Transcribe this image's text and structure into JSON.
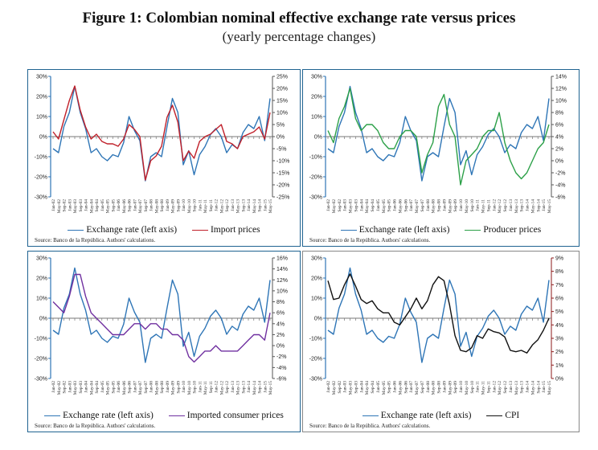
{
  "figure": {
    "title": "Figure 1: Colombian nominal effective exchange rate versus prices",
    "subtitle": "(yearly percentage changes)"
  },
  "chart_data": [
    {
      "type": "line",
      "title": "",
      "x": [
        "Jan-02",
        "May-02",
        "Sep-02",
        "Jan-03",
        "May-03",
        "Sep-03",
        "Jan-04",
        "May-04",
        "Sep-04",
        "Jan-05",
        "May-05",
        "Sep-05",
        "Jan-06",
        "May-06",
        "Sep-06",
        "Jan-07",
        "May-07",
        "Sep-07",
        "Jan-08",
        "May-08",
        "Sep-08",
        "Jan-09",
        "May-09",
        "Sep-09",
        "Jan-10",
        "May-10",
        "Sep-10",
        "Jan-11",
        "May-11",
        "Sep-11",
        "Jan-12",
        "May-12",
        "Sep-12",
        "Jan-13",
        "May-13",
        "Sep-13",
        "Jan-14",
        "May-14",
        "Sep-14",
        "Jan-15",
        "May-15"
      ],
      "ylim_left": [
        -30,
        30
      ],
      "yticks_left": [
        "30%",
        "20%",
        "10%",
        "0%",
        "-10%",
        "-20%",
        "-30%"
      ],
      "ylim_right": [
        -25,
        25
      ],
      "yticks_right": [
        "25%",
        "20%",
        "15%",
        "10%",
        "5%",
        "0%",
        "-5%",
        "-10%",
        "-15%",
        "-20%",
        "-25%"
      ],
      "series": [
        {
          "name": "Exchange rate (left axis)",
          "axis": "left",
          "color": "#2e75b6",
          "values": [
            -6,
            -8,
            5,
            12,
            25,
            12,
            4,
            -8,
            -6,
            -10,
            -12,
            -9,
            -10,
            -3,
            10,
            3,
            -2,
            -22,
            -10,
            -8,
            -10,
            5,
            19,
            12,
            -14,
            -7,
            -19,
            -9,
            -5,
            1,
            4,
            0,
            -8,
            -4,
            -6,
            2,
            6,
            4,
            10,
            -2,
            19
          ]
        },
        {
          "name": "Import prices",
          "axis": "right",
          "color": "#c0202a",
          "values": [
            2,
            -1,
            7,
            15,
            21,
            11,
            4,
            -1,
            1,
            -2,
            -3,
            -3,
            -4,
            -1,
            5,
            3,
            0,
            -18,
            -10,
            -8,
            -4,
            8,
            13,
            6,
            -10,
            -6,
            -9,
            -2,
            0,
            1,
            3,
            5,
            -2,
            -3,
            -5,
            0,
            1,
            2,
            4,
            -1,
            10
          ]
        }
      ],
      "source": "Source: Banco de la República. Authors' calculations."
    },
    {
      "type": "line",
      "x": [
        "Jan-02",
        "May-02",
        "Sep-02",
        "Jan-03",
        "May-03",
        "Sep-03",
        "Jan-04",
        "May-04",
        "Sep-04",
        "Jan-05",
        "May-05",
        "Sep-05",
        "Jan-06",
        "May-06",
        "Sep-06",
        "Jan-07",
        "May-07",
        "Sep-07",
        "Jan-08",
        "May-08",
        "Sep-08",
        "Jan-09",
        "May-09",
        "Sep-09",
        "Jan-10",
        "May-10",
        "Sep-10",
        "Jan-11",
        "May-11",
        "Sep-11",
        "Jan-12",
        "May-12",
        "Sep-12",
        "Jan-13",
        "May-13",
        "Sep-13",
        "Jan-14",
        "May-14",
        "Sep-14",
        "Jan-15",
        "May-15"
      ],
      "ylim_left": [
        -30,
        30
      ],
      "yticks_left": [
        "30%",
        "20%",
        "10%",
        "0%",
        "-10%",
        "-20%",
        "-30%"
      ],
      "ylim_right": [
        -6,
        14
      ],
      "yticks_right": [
        "14%",
        "12%",
        "10%",
        "8%",
        "6%",
        "4%",
        "2%",
        "0%",
        "-2%",
        "-4%",
        "-6%"
      ],
      "series": [
        {
          "name": "Exchange rate (left axis)",
          "axis": "left",
          "color": "#2e75b6",
          "values": [
            -6,
            -8,
            5,
            12,
            25,
            12,
            4,
            -8,
            -6,
            -10,
            -12,
            -9,
            -10,
            -3,
            10,
            3,
            -2,
            -22,
            -10,
            -8,
            -10,
            5,
            19,
            12,
            -14,
            -7,
            -19,
            -9,
            -5,
            1,
            4,
            0,
            -8,
            -4,
            -6,
            2,
            6,
            4,
            10,
            -2,
            19
          ]
        },
        {
          "name": "Producer prices",
          "axis": "right",
          "color": "#2ca048",
          "values": [
            5,
            3,
            7,
            9,
            12,
            7,
            5,
            6,
            6,
            5,
            3,
            2,
            2,
            4,
            5,
            5,
            4,
            -2,
            1,
            3,
            9,
            11,
            6,
            4,
            -4,
            0,
            1,
            2,
            4,
            5,
            5,
            8,
            3,
            0,
            -2,
            -3,
            -2,
            0,
            2,
            3,
            6
          ]
        }
      ],
      "source": "Source: Banco de la República. Authors' calculations."
    },
    {
      "type": "line",
      "x": [
        "Jan-02",
        "May-02",
        "Sep-02",
        "Jan-03",
        "May-03",
        "Sep-03",
        "Jan-04",
        "May-04",
        "Sep-04",
        "Jan-05",
        "May-05",
        "Sep-05",
        "Jan-06",
        "May-06",
        "Sep-06",
        "Jan-07",
        "May-07",
        "Sep-07",
        "Jan-08",
        "May-08",
        "Sep-08",
        "Jan-09",
        "May-09",
        "Sep-09",
        "Jan-10",
        "May-10",
        "Sep-10",
        "Jan-11",
        "May-11",
        "Sep-11",
        "Jan-12",
        "May-12",
        "Sep-12",
        "Jan-13",
        "May-13",
        "Sep-13",
        "Jan-14",
        "May-14",
        "Sep-14",
        "Jan-15",
        "May-15"
      ],
      "ylim_left": [
        -30,
        30
      ],
      "yticks_left": [
        "30%",
        "20%",
        "10%",
        "0%",
        "-10%",
        "-20%",
        "-30%"
      ],
      "ylim_right": [
        -6,
        16
      ],
      "yticks_right": [
        "16%",
        "14%",
        "12%",
        "10%",
        "8%",
        "6%",
        "4%",
        "2%",
        "0%",
        "-2%",
        "-4%",
        "-6%"
      ],
      "series": [
        {
          "name": "Exchange rate (left axis)",
          "axis": "left",
          "color": "#2e75b6",
          "values": [
            -6,
            -8,
            5,
            12,
            25,
            12,
            4,
            -8,
            -6,
            -10,
            -12,
            -9,
            -10,
            -3,
            10,
            3,
            -2,
            -22,
            -10,
            -8,
            -10,
            5,
            19,
            12,
            -14,
            -7,
            -19,
            -9,
            -5,
            1,
            4,
            0,
            -8,
            -4,
            -6,
            2,
            6,
            4,
            10,
            -2,
            19
          ]
        },
        {
          "name": "Imported consumer prices",
          "axis": "right",
          "color": "#7030a0",
          "values": [
            8,
            7,
            6,
            9,
            13,
            13,
            9,
            6,
            5,
            4,
            3,
            2,
            2,
            2,
            3,
            4,
            4,
            3,
            4,
            4,
            3,
            3,
            2,
            2,
            1,
            -2,
            -3,
            -2,
            -1,
            -1,
            0,
            -1,
            -1,
            -1,
            -1,
            0,
            1,
            2,
            2,
            1,
            6
          ]
        }
      ],
      "source": "Source: Banco de la República. Authors' calculations."
    },
    {
      "type": "line",
      "x": [
        "Jan-02",
        "May-02",
        "Sep-02",
        "Jan-03",
        "May-03",
        "Sep-03",
        "Jan-04",
        "May-04",
        "Sep-04",
        "Jan-05",
        "May-05",
        "Sep-05",
        "Jan-06",
        "May-06",
        "Sep-06",
        "Jan-07",
        "May-07",
        "Sep-07",
        "Jan-08",
        "May-08",
        "Sep-08",
        "Jan-09",
        "May-09",
        "Sep-09",
        "Jan-10",
        "May-10",
        "Sep-10",
        "Jan-11",
        "May-11",
        "Sep-11",
        "Jan-12",
        "May-12",
        "Sep-12",
        "Jan-13",
        "May-13",
        "Sep-13",
        "Jan-14",
        "May-14",
        "Sep-14",
        "Jan-15",
        "May-15"
      ],
      "ylim_left": [
        -30,
        30
      ],
      "yticks_left": [
        "30%",
        "20%",
        "10%",
        "0%",
        "-10%",
        "-20%",
        "-30%"
      ],
      "ylim_right": [
        0,
        9
      ],
      "yticks_right": [
        "9%",
        "8%",
        "7%",
        "6%",
        "5%",
        "4%",
        "3%",
        "2%",
        "1%",
        "0%"
      ],
      "series": [
        {
          "name": "Exchange rate (left axis)",
          "axis": "left",
          "color": "#2e75b6",
          "values": [
            -6,
            -8,
            5,
            12,
            25,
            12,
            4,
            -8,
            -6,
            -10,
            -12,
            -9,
            -10,
            -3,
            10,
            3,
            -2,
            -22,
            -10,
            -8,
            -10,
            5,
            19,
            12,
            -14,
            -7,
            -19,
            -9,
            -5,
            1,
            4,
            0,
            -8,
            -4,
            -6,
            2,
            6,
            4,
            10,
            -2,
            19
          ]
        },
        {
          "name": "CPI",
          "axis": "right",
          "color": "#111111",
          "values": [
            7.3,
            5.9,
            6.0,
            7.0,
            7.8,
            6.9,
            5.9,
            5.6,
            5.8,
            5.2,
            4.9,
            4.9,
            4.2,
            4.0,
            4.6,
            5.2,
            6.0,
            5.2,
            5.8,
            7.0,
            7.6,
            7.3,
            5.5,
            3.2,
            2.1,
            2.0,
            2.3,
            3.2,
            3.0,
            3.7,
            3.5,
            3.4,
            3.1,
            2.1,
            2.0,
            2.1,
            1.9,
            2.5,
            2.9,
            3.6,
            4.5
          ]
        }
      ],
      "source": "Source: Banco de la República. Authors' calculations."
    }
  ]
}
